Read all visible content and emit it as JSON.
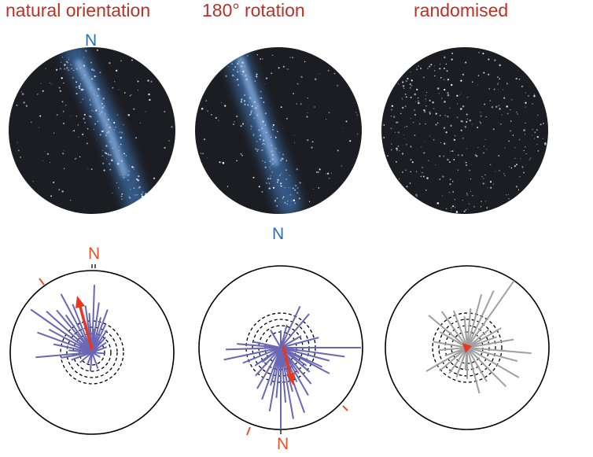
{
  "panels": [
    {
      "title": "natural orientation",
      "sky_north_label": "N",
      "plot_north_label": "N"
    },
    {
      "title": "180° rotation",
      "sky_north_label": "N",
      "plot_north_label": "N"
    },
    {
      "title": "randomised"
    }
  ],
  "colors": {
    "title_red": "#b83226",
    "sky_north_blue": "#2c6fb0",
    "plot_north_orange": "#e0542a",
    "sky_bg": "#1c1d22",
    "milky_way": "#5d8fcf",
    "vector_purple": "#6a67b5",
    "vector_gray": "#a0a0a0",
    "mean_vector_red": "#e8361f"
  }
}
